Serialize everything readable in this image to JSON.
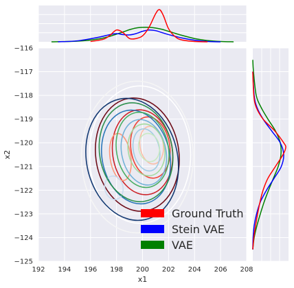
{
  "chart_data": {
    "type": "jointplot-kde",
    "xlabel": "x1",
    "ylabel": "x2",
    "xlim": [
      192,
      208
    ],
    "ylim": [
      -125,
      -116
    ],
    "x_ticks": [
      192,
      194,
      196,
      198,
      200,
      202,
      204,
      206,
      208
    ],
    "y_ticks": [
      -125,
      -124,
      -123,
      -122,
      -121,
      -120,
      -119,
      -118,
      -117,
      -116
    ],
    "grid": true,
    "background": "#eaeaf2",
    "legend_position": "lower-right",
    "series": [
      {
        "name": "Ground Truth",
        "color": "#ff0000",
        "contour_palette": "Reds",
        "x_marginal": {
          "x": [
            196.0,
            197.0,
            197.5,
            198.0,
            198.5,
            199.0,
            199.5,
            200.0,
            200.5,
            201.0,
            201.3,
            201.6,
            202.0,
            202.5,
            203.0,
            204.0,
            205.0
          ],
          "density": [
            0.01,
            0.08,
            0.2,
            0.36,
            0.28,
            0.1,
            0.1,
            0.18,
            0.44,
            0.85,
            0.98,
            0.8,
            0.4,
            0.16,
            0.06,
            0.01,
            0.0
          ]
        },
        "y_marginal": {
          "y": [
            -124.5,
            -124.0,
            -123.5,
            -123.0,
            -122.5,
            -122.0,
            -121.5,
            -121.0,
            -120.5,
            -120.2,
            -120.0,
            -119.5,
            -119.0,
            -118.5,
            -118.0,
            -117.0
          ],
          "density": [
            0.0,
            0.03,
            0.08,
            0.14,
            0.21,
            0.3,
            0.44,
            0.66,
            0.88,
            0.96,
            0.9,
            0.64,
            0.3,
            0.1,
            0.03,
            0.0
          ]
        },
        "contours": [
          {
            "cx": 200.7,
            "cy": -120.1,
            "rx": 0.9,
            "ry": 0.8
          },
          {
            "cx": 200.6,
            "cy": -120.2,
            "rx": 1.5,
            "ry": 1.3
          },
          {
            "cx": 200.0,
            "cy": -120.4,
            "rx": 2.3,
            "ry": 1.8
          },
          {
            "cx": 198.3,
            "cy": -120.6,
            "rx": 0.8,
            "ry": 1.0
          },
          {
            "cx": 199.6,
            "cy": -120.5,
            "rx": 3.2,
            "ry": 2.4
          }
        ]
      },
      {
        "name": "Stein VAE",
        "color": "#0000ff",
        "contour_palette": "Blues",
        "x_marginal": {
          "x": [
            193.5,
            195.0,
            196.5,
            197.5,
            198.0,
            198.5,
            199.0,
            199.5,
            200.0,
            200.5,
            201.0,
            201.5,
            202.0,
            203.0,
            204.0,
            205.0,
            206.0
          ],
          "density": [
            0.0,
            0.03,
            0.13,
            0.22,
            0.25,
            0.22,
            0.21,
            0.25,
            0.32,
            0.36,
            0.34,
            0.28,
            0.22,
            0.12,
            0.05,
            0.01,
            0.0
          ]
        },
        "y_marginal": {
          "y": [
            -124.5,
            -124.0,
            -123.5,
            -123.0,
            -122.5,
            -122.0,
            -121.5,
            -121.0,
            -120.5,
            -120.0,
            -119.5,
            -119.0,
            -118.5,
            -118.0,
            -117.0
          ],
          "density": [
            0.0,
            0.01,
            0.04,
            0.11,
            0.22,
            0.4,
            0.62,
            0.83,
            0.9,
            0.8,
            0.55,
            0.3,
            0.12,
            0.04,
            0.0
          ]
        },
        "contours": [
          {
            "cx": 200.3,
            "cy": -120.3,
            "rx": 1.0,
            "ry": 0.9
          },
          {
            "cx": 200.1,
            "cy": -120.4,
            "rx": 1.7,
            "ry": 1.4
          },
          {
            "cx": 197.8,
            "cy": -121.9,
            "rx": 0.7,
            "ry": 0.5
          },
          {
            "cx": 199.5,
            "cy": -120.6,
            "rx": 2.6,
            "ry": 2.0
          },
          {
            "cx": 199.2,
            "cy": -120.7,
            "rx": 3.5,
            "ry": 2.6
          }
        ]
      },
      {
        "name": "VAE",
        "color": "#008000",
        "contour_palette": "Greens",
        "x_marginal": {
          "x": [
            193.0,
            195.0,
            196.5,
            197.5,
            198.5,
            199.0,
            199.5,
            200.0,
            200.5,
            201.0,
            201.5,
            202.0,
            203.0,
            204.0,
            205.0,
            206.0,
            207.0
          ],
          "density": [
            0.0,
            0.02,
            0.08,
            0.17,
            0.3,
            0.37,
            0.42,
            0.44,
            0.44,
            0.42,
            0.38,
            0.32,
            0.2,
            0.1,
            0.04,
            0.01,
            0.0
          ]
        },
        "y_marginal": {
          "y": [
            -124.5,
            -124.0,
            -123.5,
            -123.0,
            -122.5,
            -122.0,
            -121.5,
            -121.0,
            -120.5,
            -120.0,
            -119.5,
            -119.0,
            -118.5,
            -118.0,
            -117.0,
            -116.5
          ],
          "density": [
            0.0,
            0.04,
            0.12,
            0.22,
            0.33,
            0.46,
            0.6,
            0.74,
            0.82,
            0.8,
            0.66,
            0.44,
            0.24,
            0.1,
            0.02,
            0.0
          ]
        },
        "contours": [
          {
            "cx": 200.5,
            "cy": -120.2,
            "rx": 0.8,
            "ry": 0.6
          },
          {
            "cx": 200.3,
            "cy": -120.3,
            "rx": 1.4,
            "ry": 1.1
          },
          {
            "cx": 200.0,
            "cy": -120.3,
            "rx": 2.0,
            "ry": 1.6
          },
          {
            "cx": 199.5,
            "cy": -120.4,
            "rx": 2.8,
            "ry": 2.1
          }
        ]
      }
    ],
    "extra_contours": [
      {
        "cx": 199.8,
        "cy": -120.5,
        "rx": 3.9,
        "ry": 2.9,
        "color": "#ffffff"
      },
      {
        "cx": 199.6,
        "cy": -120.6,
        "rx": 4.3,
        "ry": 3.2,
        "color": "#f5f5f5"
      }
    ]
  }
}
